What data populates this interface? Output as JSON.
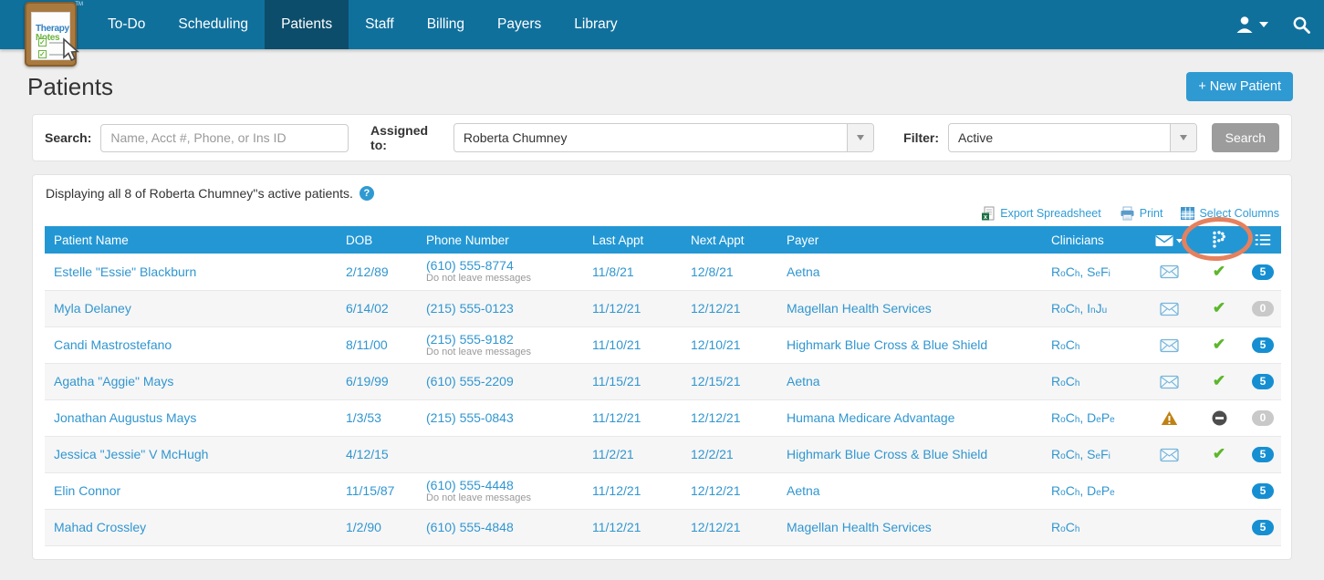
{
  "colors": {
    "navbar": "#10709c",
    "navbar_active": "#0c4d6b",
    "table_header_blue": "#2397d4",
    "link_blue": "#2f9cd6",
    "accent_button_blue": "#2f9ad2",
    "badge_blue": "#168fd2",
    "badge_gray": "#c9c9c9",
    "check_green": "#5cb72b",
    "warning_amber": "#c08114",
    "annotation_orange": "#e5815e"
  },
  "nav": {
    "logo_line1": "Therapy",
    "logo_line2": "Notes",
    "logo_tm": "TM",
    "items": [
      "To-Do",
      "Scheduling",
      "Patients",
      "Staff",
      "Billing",
      "Payers",
      "Library"
    ],
    "active_item": "Patients"
  },
  "page": {
    "title": "Patients",
    "new_patient_button": "+ New Patient"
  },
  "filter_bar": {
    "search_label": "Search:",
    "search_placeholder": "Name, Acct #, Phone, or Ins ID",
    "assigned_to_label": "Assigned to:",
    "assigned_to_value": "Roberta Chumney",
    "filter_label": "Filter:",
    "filter_value": "Active",
    "search_button": "Search"
  },
  "results": {
    "summary": "Displaying all 8 of Roberta Chumney''s active patients.",
    "export_label": "Export Spreadsheet",
    "print_label": "Print",
    "select_columns_label": "Select Columns"
  },
  "table": {
    "columns": [
      "Patient Name",
      "DOB",
      "Phone Number",
      "Last Appt",
      "Next Appt",
      "Payer",
      "Clinicians"
    ],
    "icon_columns": [
      "envelope-dropdown-icon",
      "portal-p-icon",
      "task-list-icon"
    ],
    "rows": [
      {
        "name": "Estelle \"Essie\" Blackburn",
        "dob": "2/12/89",
        "phone": "(610) 555-8774",
        "phone_note": "Do not leave messages",
        "last_appt": "11/8/21",
        "next_appt": "12/8/21",
        "payer": "Aetna",
        "clinicians": [
          "RoCh",
          "SeFi"
        ],
        "message_icon": "envelope",
        "status_icon": "check",
        "badge": "5",
        "badge_style": "blue"
      },
      {
        "name": "Myla Delaney",
        "dob": "6/14/02",
        "phone": "(215) 555-0123",
        "phone_note": "",
        "last_appt": "11/12/21",
        "next_appt": "12/12/21",
        "payer": "Magellan Health Services",
        "clinicians": [
          "RoCh",
          "InJu"
        ],
        "message_icon": "envelope",
        "status_icon": "check",
        "badge": "0",
        "badge_style": "gray"
      },
      {
        "name": "Candi Mastrostefano",
        "dob": "8/11/00",
        "phone": "(215) 555-9182",
        "phone_note": "Do not leave messages",
        "last_appt": "11/10/21",
        "next_appt": "12/10/21",
        "payer": "Highmark Blue Cross & Blue Shield",
        "clinicians": [
          "RoCh"
        ],
        "message_icon": "envelope",
        "status_icon": "check",
        "badge": "5",
        "badge_style": "blue"
      },
      {
        "name": "Agatha \"Aggie\" Mays",
        "dob": "6/19/99",
        "phone": "(610) 555-2209",
        "phone_note": "",
        "last_appt": "11/15/21",
        "next_appt": "12/15/21",
        "payer": "Aetna",
        "clinicians": [
          "RoCh"
        ],
        "message_icon": "envelope",
        "status_icon": "check",
        "badge": "5",
        "badge_style": "blue"
      },
      {
        "name": "Jonathan Augustus Mays",
        "dob": "1/3/53",
        "phone": "(215) 555-0843",
        "phone_note": "",
        "last_appt": "11/12/21",
        "next_appt": "12/12/21",
        "payer": "Humana Medicare Advantage",
        "clinicians": [
          "RoCh",
          "DePe"
        ],
        "message_icon": "warning",
        "status_icon": "minus",
        "badge": "0",
        "badge_style": "gray"
      },
      {
        "name": "Jessica \"Jessie\" V McHugh",
        "dob": "4/12/15",
        "phone": "",
        "phone_note": "",
        "last_appt": "11/2/21",
        "next_appt": "12/2/21",
        "payer": "Highmark Blue Cross & Blue Shield",
        "clinicians": [
          "RoCh",
          "SeFi"
        ],
        "message_icon": "envelope",
        "status_icon": "check",
        "badge": "5",
        "badge_style": "blue"
      },
      {
        "name": "Elin Connor",
        "dob": "11/15/87",
        "phone": "(610) 555-4448",
        "phone_note": "Do not leave messages",
        "last_appt": "11/12/21",
        "next_appt": "12/12/21",
        "payer": "Aetna",
        "clinicians": [
          "RoCh",
          "DePe"
        ],
        "message_icon": "none",
        "status_icon": "none",
        "badge": "5",
        "badge_style": "blue"
      },
      {
        "name": "Mahad Crossley",
        "dob": "1/2/90",
        "phone": "(610) 555-4848",
        "phone_note": "",
        "last_appt": "11/12/21",
        "next_appt": "12/12/21",
        "payer": "Magellan Health Services",
        "clinicians": [
          "RoCh"
        ],
        "message_icon": "none",
        "status_icon": "none",
        "badge": "5",
        "badge_style": "blue"
      }
    ]
  }
}
